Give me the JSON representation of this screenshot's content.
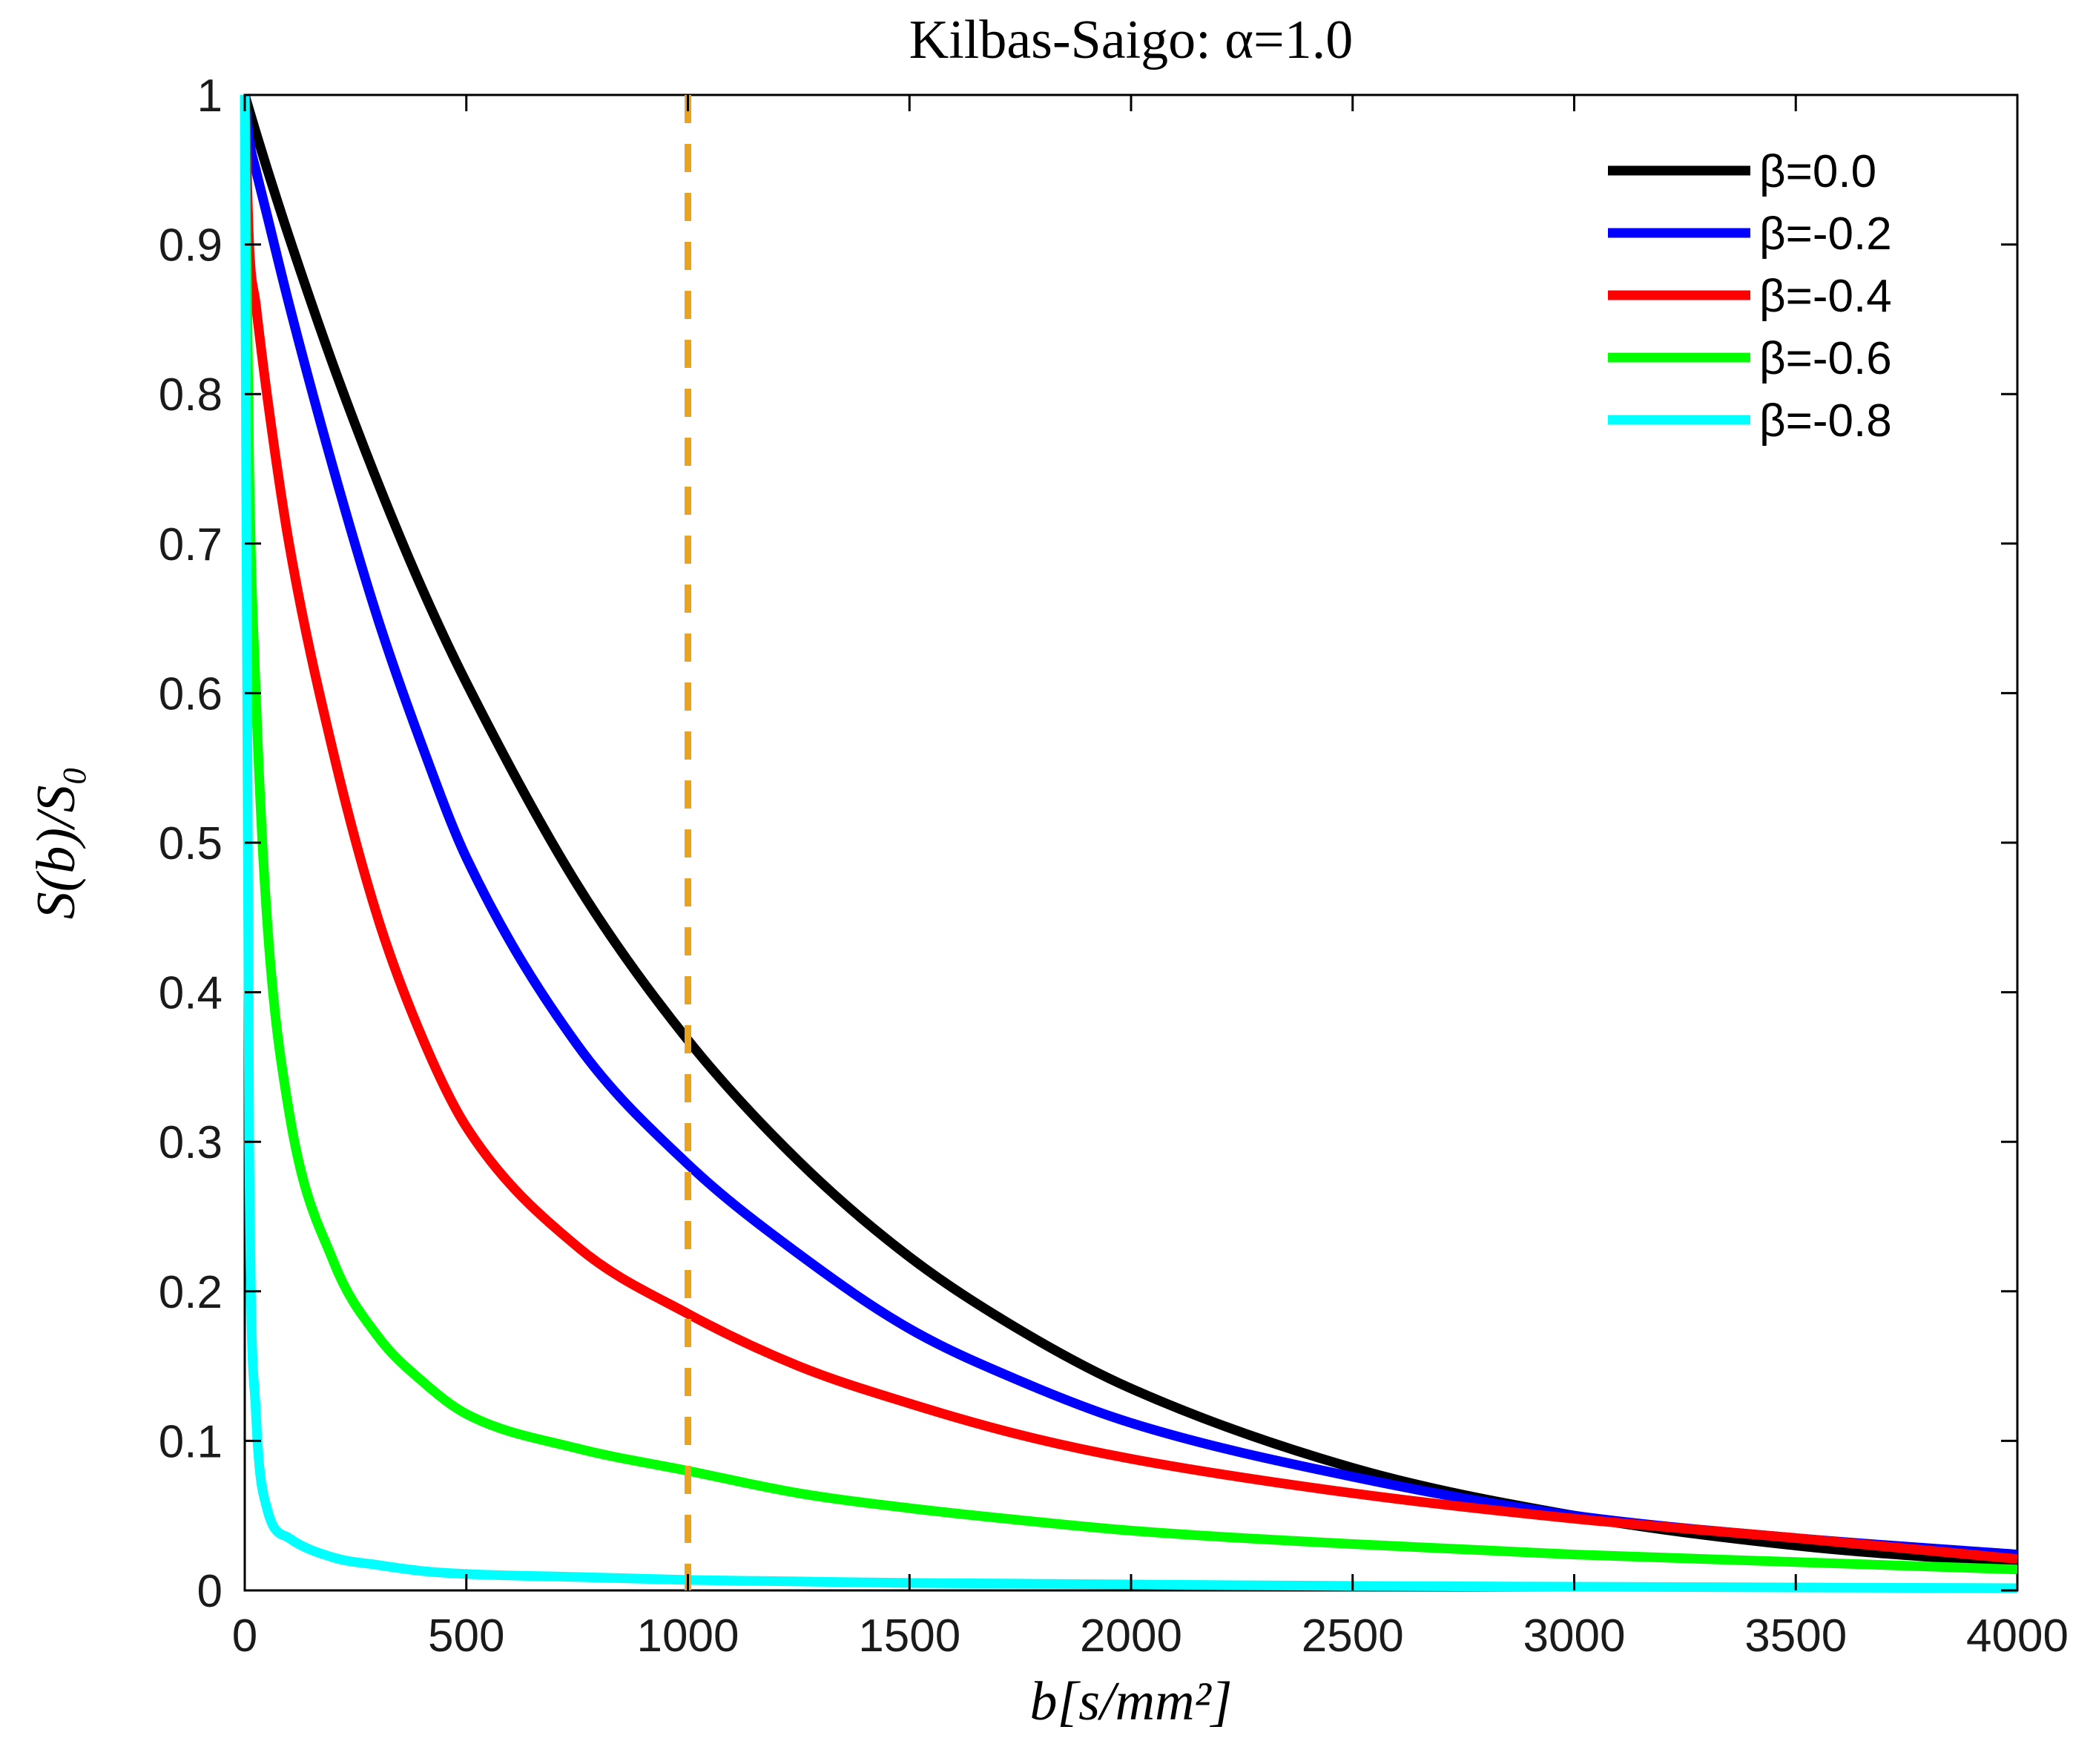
{
  "chart_data": {
    "type": "line",
    "title": "Kilbas-Saigo: α=1.0",
    "xlabel": "b[s/mm²]",
    "ylabel": "S(b)/S₀",
    "xlim": [
      0,
      4000
    ],
    "ylim": [
      0,
      1
    ],
    "xticks": [
      0,
      500,
      1000,
      1500,
      2000,
      2500,
      3000,
      3500,
      4000
    ],
    "xtick_labels": [
      "0",
      "500",
      "1000",
      "1500",
      "2000",
      "2500",
      "3000",
      "3500",
      "4000"
    ],
    "yticks": [
      0,
      0.1,
      0.2,
      0.3,
      0.4,
      0.5,
      0.6,
      0.7,
      0.8,
      0.9,
      1
    ],
    "ytick_labels": [
      "0",
      "0.1",
      "0.2",
      "0.3",
      "0.4",
      "0.5",
      "0.6",
      "0.7",
      "0.8",
      "0.9",
      "1"
    ],
    "grid": false,
    "legend_position": "top-right",
    "reference_line": {
      "orientation": "vertical",
      "x": 1000,
      "style": "dashed",
      "color": "#E8A321"
    },
    "x": [
      0,
      10,
      25,
      50,
      100,
      200,
      300,
      400,
      500,
      750,
      1000,
      1250,
      1500,
      1750,
      2000,
      2500,
      3000,
      3500,
      4000
    ],
    "series": [
      {
        "name": "β=0.0",
        "color": "#000000",
        "values": [
          1.0,
          0.99,
          0.975,
          0.951,
          0.905,
          0.819,
          0.741,
          0.67,
          0.607,
          0.472,
          0.368,
          0.287,
          0.223,
          0.174,
          0.135,
          0.082,
          0.05,
          0.03,
          0.018
        ]
      },
      {
        "name": "β=-0.2",
        "color": "#0000FF",
        "values": [
          1.0,
          0.97,
          0.95,
          0.92,
          0.86,
          0.75,
          0.65,
          0.565,
          0.49,
          0.365,
          0.285,
          0.225,
          0.175,
          0.14,
          0.112,
          0.076,
          0.05,
          0.035,
          0.024
        ]
      },
      {
        "name": "β=-0.4",
        "color": "#FF0000",
        "values": [
          1.0,
          0.9,
          0.86,
          0.8,
          0.7,
          0.56,
          0.45,
          0.37,
          0.31,
          0.23,
          0.185,
          0.15,
          0.125,
          0.104,
          0.088,
          0.065,
          0.048,
          0.035,
          0.021
        ]
      },
      {
        "name": "β=-0.6",
        "color": "#00FF00",
        "values": [
          1.0,
          0.75,
          0.6,
          0.45,
          0.32,
          0.22,
          0.17,
          0.14,
          0.118,
          0.095,
          0.08,
          0.065,
          0.055,
          0.047,
          0.04,
          0.031,
          0.024,
          0.019,
          0.014
        ]
      },
      {
        "name": "β=-0.8",
        "color": "#00FFFF",
        "values": [
          1.0,
          0.3,
          0.12,
          0.055,
          0.035,
          0.022,
          0.017,
          0.013,
          0.011,
          0.009,
          0.007,
          0.006,
          0.005,
          0.0045,
          0.004,
          0.003,
          0.0025,
          0.002,
          0.0015
        ]
      }
    ]
  }
}
